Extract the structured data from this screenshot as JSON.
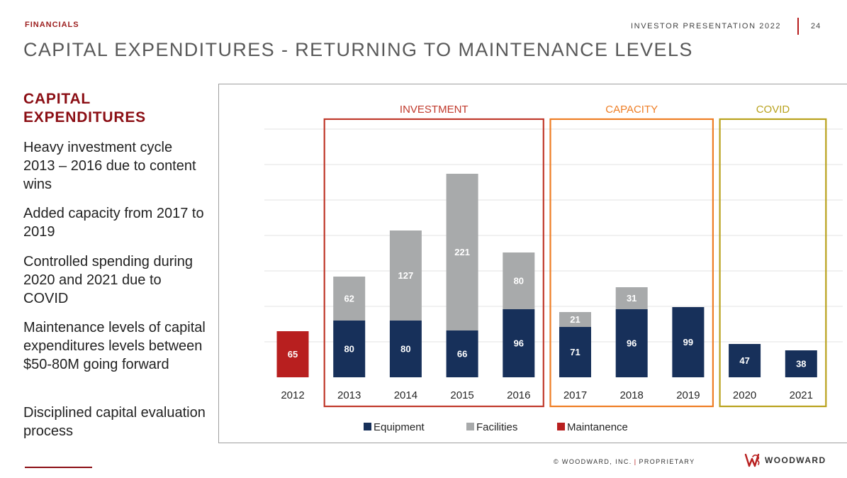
{
  "header": {
    "section_label": "FINANCIALS",
    "presentation_title": "INVESTOR PRESENTATION 2022",
    "page_number": "24",
    "page_title": "CAPITAL EXPENDITURES - RETURNING TO MAINTENANCE LEVELS"
  },
  "sidebar": {
    "heading": "CAPITAL EXPENDITURES",
    "bullets": [
      "Heavy investment cycle 2013 – 2016 due to content wins",
      "Added capacity from 2017 to 2019",
      "Controlled spending during 2020 and 2021 due to COVID",
      "Maintenance levels of capital expenditures levels between $50-80M going forward",
      "Disciplined capital evaluation process"
    ]
  },
  "footer": {
    "copyright": "© WOODWARD, INC.",
    "classification": "PROPRIETARY",
    "logo_text": "WOODWARD"
  },
  "colors": {
    "equipment": "#17305a",
    "facilities": "#a8aaab",
    "maintenance": "#b81f1f",
    "investment_box": "#c0392b",
    "capacity_box": "#ee7d24",
    "covid_box": "#b9a21d",
    "accent": "#8b0e14"
  },
  "chart_data": {
    "type": "bar",
    "stacked": true,
    "categories": [
      "2012",
      "2013",
      "2014",
      "2015",
      "2016",
      "2017",
      "2018",
      "2019",
      "2020",
      "2021"
    ],
    "series": [
      {
        "name": "Maintanence",
        "color": "#b81f1f",
        "values": [
          65,
          null,
          null,
          null,
          null,
          null,
          null,
          null,
          null,
          null
        ]
      },
      {
        "name": "Equipment",
        "color": "#17305a",
        "values": [
          null,
          80,
          80,
          66,
          96,
          71,
          96,
          99,
          47,
          38
        ]
      },
      {
        "name": "Facilities",
        "color": "#a8aaab",
        "values": [
          null,
          62,
          127,
          221,
          80,
          21,
          31,
          null,
          null,
          null
        ]
      }
    ],
    "legend": [
      "Equipment",
      "Facilities",
      "Maintanence"
    ],
    "legend_position": "bottom",
    "groups": [
      {
        "label": "INVESTMENT",
        "from": "2013",
        "to": "2016",
        "color": "#c0392b"
      },
      {
        "label": "CAPACITY",
        "from": "2017",
        "to": "2019",
        "color": "#ee7d24"
      },
      {
        "label": "COVID",
        "from": "2020",
        "to": "2021",
        "color": "#b9a21d"
      }
    ],
    "ylim": [
      0,
      350
    ],
    "grid": true,
    "title": "",
    "xlabel": "",
    "ylabel": ""
  }
}
